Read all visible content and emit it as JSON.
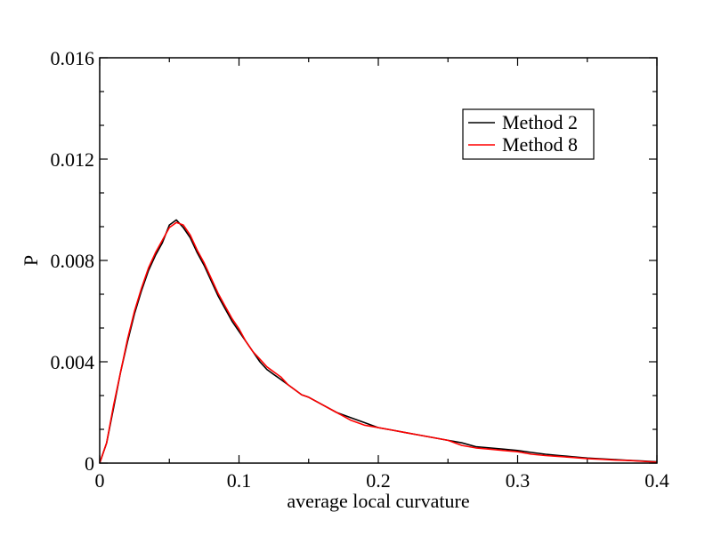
{
  "chart_data": {
    "type": "line",
    "xlabel": "average local curvature",
    "ylabel": "P",
    "xlim": [
      0,
      0.4
    ],
    "ylim": [
      0,
      0.016
    ],
    "x_ticks": [
      0,
      0.1,
      0.2,
      0.3,
      0.4
    ],
    "x_tick_labels": [
      "0",
      "0.1",
      "0.2",
      "0.3",
      "0.4"
    ],
    "y_ticks": [
      0,
      0.004,
      0.008,
      0.012,
      0.016
    ],
    "y_tick_labels": [
      "0",
      "0.004",
      "0.008",
      "0.012",
      "0.016"
    ],
    "grid": false,
    "legend_position": "top-right",
    "series": [
      {
        "name": "Method 2",
        "color": "#000000",
        "x": [
          0,
          0.005,
          0.01,
          0.015,
          0.02,
          0.025,
          0.03,
          0.035,
          0.04,
          0.045,
          0.05,
          0.055,
          0.06,
          0.065,
          0.07,
          0.075,
          0.08,
          0.085,
          0.09,
          0.095,
          0.1,
          0.105,
          0.11,
          0.115,
          0.12,
          0.125,
          0.13,
          0.135,
          0.14,
          0.145,
          0.15,
          0.16,
          0.17,
          0.18,
          0.19,
          0.2,
          0.21,
          0.22,
          0.23,
          0.24,
          0.25,
          0.26,
          0.27,
          0.28,
          0.29,
          0.3,
          0.31,
          0.32,
          0.33,
          0.34,
          0.35,
          0.36,
          0.37,
          0.38,
          0.39,
          0.4
        ],
        "y": [
          0,
          0.0008,
          0.0022,
          0.0036,
          0.0048,
          0.0059,
          0.0068,
          0.0076,
          0.0082,
          0.0087,
          0.0094,
          0.0096,
          0.0093,
          0.0089,
          0.0083,
          0.0078,
          0.0072,
          0.0066,
          0.0061,
          0.0056,
          0.0052,
          0.0048,
          0.0044,
          0.004,
          0.0037,
          0.0035,
          0.0033,
          0.0031,
          0.0029,
          0.0027,
          0.0026,
          0.0023,
          0.002,
          0.0018,
          0.0016,
          0.0014,
          0.0013,
          0.0012,
          0.0011,
          0.001,
          0.0009,
          0.0008,
          0.00065,
          0.0006,
          0.00055,
          0.0005,
          0.00042,
          0.00035,
          0.0003,
          0.00025,
          0.0002,
          0.00017,
          0.00014,
          0.00011,
          8e-05,
          5e-05
        ]
      },
      {
        "name": "Method 8",
        "color": "#ff0000",
        "x": [
          0,
          0.005,
          0.01,
          0.015,
          0.02,
          0.025,
          0.03,
          0.035,
          0.04,
          0.045,
          0.05,
          0.055,
          0.06,
          0.065,
          0.07,
          0.075,
          0.08,
          0.085,
          0.09,
          0.095,
          0.1,
          0.105,
          0.11,
          0.115,
          0.12,
          0.125,
          0.13,
          0.135,
          0.14,
          0.145,
          0.15,
          0.16,
          0.17,
          0.18,
          0.19,
          0.2,
          0.21,
          0.22,
          0.23,
          0.24,
          0.25,
          0.26,
          0.27,
          0.28,
          0.29,
          0.3,
          0.31,
          0.32,
          0.33,
          0.34,
          0.35,
          0.36,
          0.37,
          0.38,
          0.39,
          0.4
        ],
        "y": [
          0,
          0.0008,
          0.0023,
          0.0036,
          0.0049,
          0.006,
          0.0069,
          0.0077,
          0.0083,
          0.0088,
          0.0093,
          0.0095,
          0.0094,
          0.009,
          0.0084,
          0.0079,
          0.0073,
          0.0067,
          0.0062,
          0.0057,
          0.0053,
          0.0048,
          0.0044,
          0.0041,
          0.0038,
          0.0036,
          0.0034,
          0.0031,
          0.0029,
          0.0027,
          0.0026,
          0.0023,
          0.002,
          0.0017,
          0.0015,
          0.0014,
          0.0013,
          0.0012,
          0.0011,
          0.001,
          0.0009,
          0.0007,
          0.0006,
          0.00055,
          0.0005,
          0.00045,
          0.00035,
          0.0003,
          0.00026,
          0.00022,
          0.00018,
          0.00015,
          0.00012,
          0.0001,
          7e-05,
          4e-05
        ]
      }
    ]
  }
}
